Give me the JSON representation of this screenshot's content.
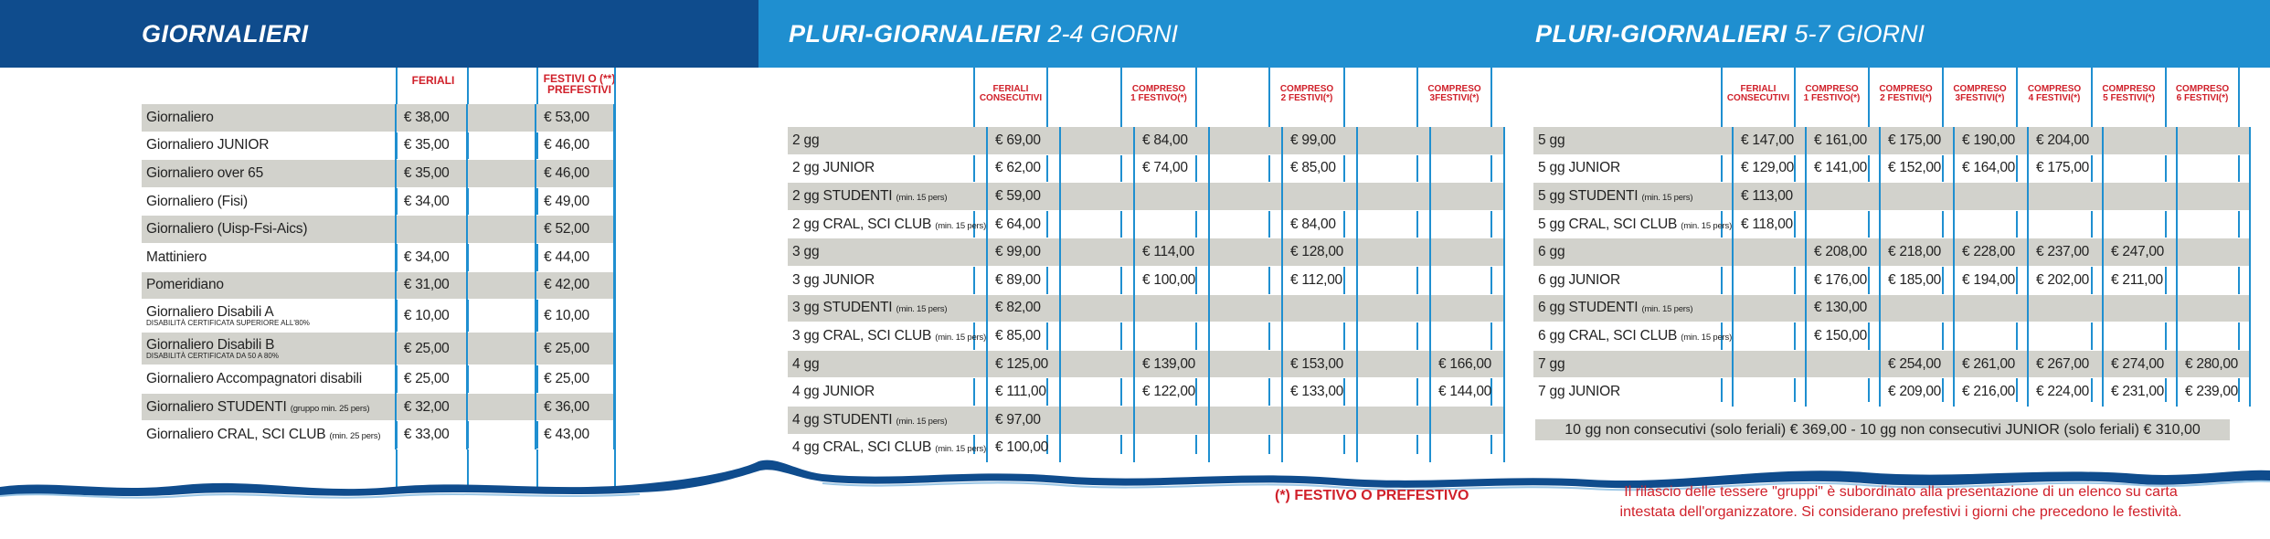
{
  "headers": {
    "giornalieri": "GIORNALIERI",
    "pluri1_bold": "PLURI-GIORNALIERI",
    "pluri1_light": "2-4 GIORNI",
    "pluri2_bold": "PLURI-GIORNALIERI",
    "pluri2_light": "5-7 GIORNI"
  },
  "giornalieri": {
    "col_feriali": "FERIALI",
    "col_festivi_1": "FESTIVI o (**)",
    "col_festivi_2": "PREFESTIVI",
    "rows": [
      {
        "name": "Giornaliero",
        "sub": "",
        "note": "",
        "f": "€  38,00",
        "fe": "€  53,00"
      },
      {
        "name": "Giornaliero JUNIOR",
        "sub": "",
        "note": "",
        "f": "€  35,00",
        "fe": "€  46,00"
      },
      {
        "name": "Giornaliero over 65",
        "sub": "",
        "note": "",
        "f": "€  35,00",
        "fe": "€  46,00"
      },
      {
        "name": "Giornaliero (Fisi)",
        "sub": "",
        "note": "",
        "f": "€  34,00",
        "fe": "€  49,00"
      },
      {
        "name": "Giornaliero (Uisp-Fsi-Aics)",
        "sub": "",
        "note": "",
        "f": "",
        "fe": "€  52,00"
      },
      {
        "name": "Mattiniero",
        "sub": "",
        "note": "",
        "f": "€  34,00",
        "fe": "€  44,00"
      },
      {
        "name": "Pomeridiano",
        "sub": "",
        "note": "",
        "f": "€  31,00",
        "fe": "€  42,00"
      },
      {
        "name": "Giornaliero Disabili A",
        "sub": "DISABILITÀ CERTIFICATA SUPERIORE ALL'80%",
        "note": "",
        "f": "€  10,00",
        "fe": "€  10,00"
      },
      {
        "name": "Giornaliero Disabili B",
        "sub": "DISABILITÀ CERTIFICATA DA 50 A 80%",
        "note": "",
        "f": "€  25,00",
        "fe": "€  25,00"
      },
      {
        "name": "Giornaliero Accompagnatori disabili",
        "sub": "",
        "note": "",
        "f": "€  25,00",
        "fe": "€  25,00"
      },
      {
        "name": "Giornaliero STUDENTI",
        "sub": "",
        "note": "(gruppo min. 25 pers)",
        "f": "€  32,00",
        "fe": "€  36,00"
      },
      {
        "name": "Giornaliero CRAL, SCI CLUB",
        "sub": "",
        "note": "(min. 25 pers)",
        "f": "€  33,00",
        "fe": "€  43,00"
      }
    ]
  },
  "pluri1": {
    "cols": [
      {
        "l1": "FERIALI",
        "l2": "CONSECUTIVI"
      },
      {
        "l1": "COMPRESO",
        "l2": "1 FESTIVO(*)"
      },
      {
        "l1": "COMPRESO",
        "l2": "2 FESTIVI(*)"
      },
      {
        "l1": "COMPRESO",
        "l2": "3FESTIVI(*)"
      }
    ],
    "rows": [
      {
        "name": "2 gg",
        "note": "",
        "v": [
          "€  69,00",
          "€  84,00",
          "€  99,00",
          ""
        ]
      },
      {
        "name": "2 gg JUNIOR",
        "note": "",
        "v": [
          "€  62,00",
          "€  74,00",
          "€  85,00",
          ""
        ]
      },
      {
        "name": "2 gg STUDENTI",
        "note": "(min. 15 pers)",
        "v": [
          "€  59,00",
          "",
          "",
          ""
        ]
      },
      {
        "name": "2 gg CRAL, SCI CLUB",
        "note": "(min. 15 pers)",
        "v": [
          "€  64,00",
          "",
          "€  84,00",
          ""
        ]
      },
      {
        "name": "3 gg",
        "note": "",
        "v": [
          "€  99,00",
          "€  114,00",
          "€  128,00",
          ""
        ]
      },
      {
        "name": "3 gg JUNIOR",
        "note": "",
        "v": [
          "€  89,00",
          "€  100,00",
          "€  112,00",
          ""
        ]
      },
      {
        "name": "3 gg STUDENTI",
        "note": "(min. 15 pers)",
        "v": [
          "€  82,00",
          "",
          "",
          ""
        ]
      },
      {
        "name": "3 gg CRAL, SCI CLUB",
        "note": "(min. 15 pers)",
        "v": [
          "€  85,00",
          "",
          "",
          ""
        ]
      },
      {
        "name": "4 gg",
        "note": "",
        "v": [
          "€  125,00",
          "€  139,00",
          "€  153,00",
          "€  166,00"
        ]
      },
      {
        "name": "4 gg JUNIOR",
        "note": "",
        "v": [
          "€  111,00",
          "€  122,00",
          "€  133,00",
          "€  144,00"
        ]
      },
      {
        "name": "4 gg STUDENTI",
        "note": "(min. 15 pers)",
        "v": [
          "€  97,00",
          "",
          "",
          ""
        ]
      },
      {
        "name": "4 gg CRAL, SCI CLUB",
        "note": "(min. 15 pers)",
        "v": [
          "€  100,00",
          "",
          "",
          ""
        ]
      }
    ]
  },
  "pluri2": {
    "cols": [
      {
        "l1": "FERIALI",
        "l2": "CONSECUTIVI"
      },
      {
        "l1": "COMPRESO",
        "l2": "1 FESTIVO(*)"
      },
      {
        "l1": "COMPRESO",
        "l2": "2 FESTIVI(*)"
      },
      {
        "l1": "COMPRESO",
        "l2": "3FESTIVI(*)"
      },
      {
        "l1": "COMPRESO",
        "l2": "4 FESTIVI(*)"
      },
      {
        "l1": "COMPRESO",
        "l2": "5 FESTIVI(*)"
      },
      {
        "l1": "COMPRESO",
        "l2": "6 FESTIVI(*)"
      }
    ],
    "rows": [
      {
        "name": "5 gg",
        "note": "",
        "v": [
          "€  147,00",
          "€  161,00",
          "€  175,00",
          "€  190,00",
          "€  204,00",
          "",
          ""
        ]
      },
      {
        "name": "5 gg JUNIOR",
        "note": "",
        "v": [
          "€  129,00",
          "€  141,00",
          "€  152,00",
          "€  164,00",
          "€  175,00",
          "",
          ""
        ]
      },
      {
        "name": "5 gg STUDENTI",
        "note": "(min. 15 pers)",
        "v": [
          "€  113,00",
          "",
          "",
          "",
          "",
          "",
          ""
        ]
      },
      {
        "name": "5 gg CRAL, SCI CLUB",
        "note": "(min. 15 pers)",
        "v": [
          "€  118,00",
          "",
          "",
          "",
          "",
          "",
          ""
        ]
      },
      {
        "name": "6 gg",
        "note": "",
        "v": [
          "",
          "€ 208,00",
          "€  218,00",
          "€ 228,00",
          "€  237,00",
          "€  247,00",
          ""
        ]
      },
      {
        "name": "6 gg JUNIOR",
        "note": "",
        "v": [
          "",
          "€  176,00",
          "€  185,00",
          "€  194,00",
          "€ 202,00",
          "€  211,00",
          ""
        ]
      },
      {
        "name": "6 gg STUDENTI",
        "note": "(min. 15 pers)",
        "v": [
          "",
          "€  130,00",
          "",
          "",
          "",
          "",
          ""
        ]
      },
      {
        "name": "6 gg CRAL, SCI CLUB",
        "note": "(min. 15 pers)",
        "v": [
          "",
          "€  150,00",
          "",
          "",
          "",
          "",
          ""
        ]
      },
      {
        "name": "7 gg",
        "note": "",
        "v": [
          "",
          "",
          "€ 254,00",
          "€  261,00",
          "€  267,00",
          "€  274,00",
          "€  280,00"
        ]
      },
      {
        "name": "7 gg JUNIOR",
        "note": "",
        "v": [
          "",
          "",
          "€ 209,00",
          "€  216,00",
          "€  224,00",
          "€  231,00",
          "€ 239,00"
        ]
      }
    ],
    "wide_row": "10 gg non consecutivi (solo feriali) € 369,00  -  10 gg non consecutivi JUNIOR (solo feriali) € 310,00"
  },
  "notes": {
    "festivo": "(*) FESTIVO O PREFESTIVO",
    "gruppi_1": "Il rilascio delle tessere \"gruppi\" è subordinato alla presentazione di un elenco su carta",
    "gruppi_2": "intestata dell'organizzatore. Si considerano prefestivi i giorni che precedono le festività."
  },
  "colors": {
    "dark_blue": "#0f4c8d",
    "light_blue": "#1f8fd0",
    "red": "#d0202a",
    "gray_row": "#d2d2cc"
  }
}
